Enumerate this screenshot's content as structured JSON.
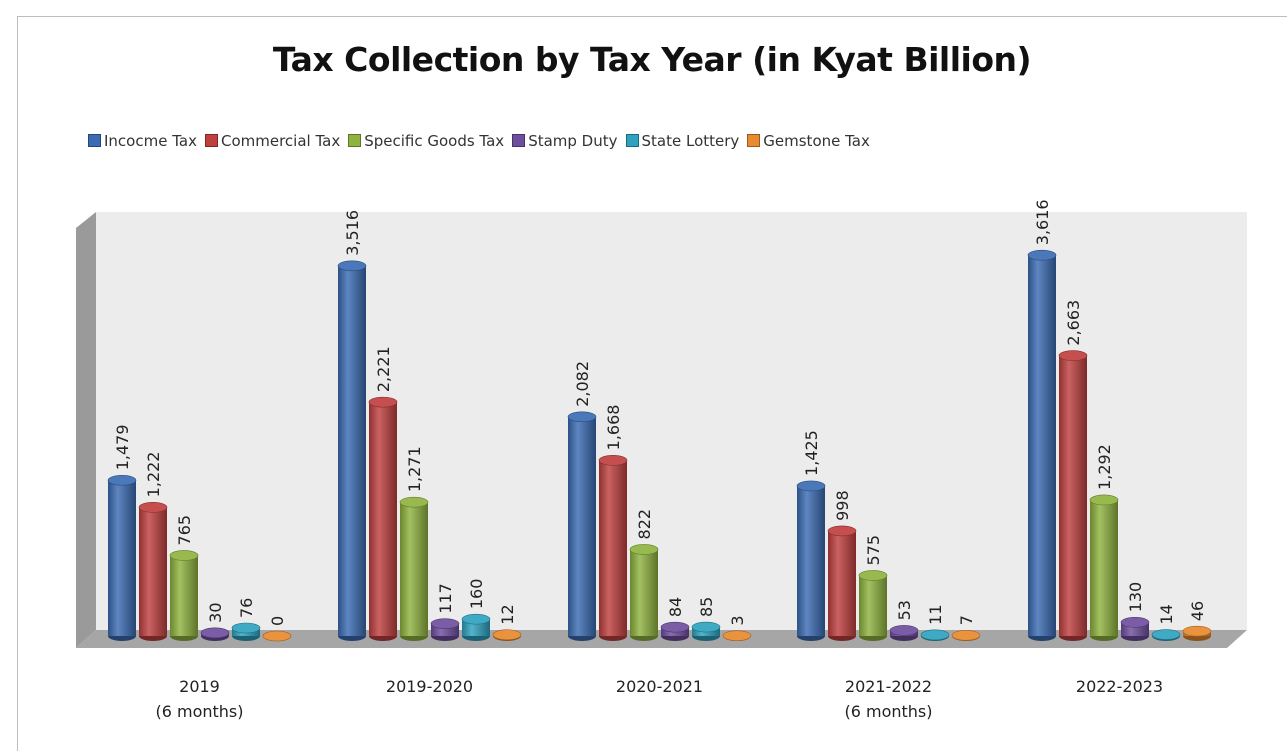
{
  "chart_data": {
    "type": "bar",
    "title": "Tax Collection by Tax Year (in Kyat Billion)",
    "xlabel": "",
    "ylabel": "",
    "ylim": [
      0,
      4000
    ],
    "grid": false,
    "legend_position": "top",
    "categories": [
      [
        "2019",
        "(6 months)"
      ],
      [
        "2019-2020"
      ],
      [
        "2020-2021"
      ],
      [
        "2021-2022",
        "(6 months)"
      ],
      [
        "2022-2023"
      ]
    ],
    "series": [
      {
        "name": "Incocme Tax",
        "color": "#3b6cb3",
        "values": [
          1479,
          3516,
          2082,
          1425,
          3616
        ],
        "labels": [
          "1,479",
          "3,516",
          "2,082",
          "1,425",
          "3,616"
        ]
      },
      {
        "name": "Commercial Tax",
        "color": "#c0403f",
        "values": [
          1222,
          2221,
          1668,
          998,
          2663
        ],
        "labels": [
          "1,222",
          "2,221",
          "1,668",
          "998",
          "2,663"
        ]
      },
      {
        "name": "Specific Goods Tax",
        "color": "#8fb33f",
        "values": [
          765,
          1271,
          822,
          575,
          1292
        ],
        "labels": [
          "765",
          "1,271",
          "822",
          "575",
          "1,292"
        ]
      },
      {
        "name": "Stamp Duty",
        "color": "#6f4e9e",
        "values": [
          30,
          117,
          84,
          53,
          130
        ],
        "labels": [
          "30",
          "117",
          "84",
          "53",
          "130"
        ]
      },
      {
        "name": "State Lottery",
        "color": "#2fa2bf",
        "values": [
          76,
          160,
          85,
          11,
          14
        ],
        "labels": [
          "76",
          "160",
          "85",
          "11",
          "14"
        ]
      },
      {
        "name": "Gemstone Tax",
        "color": "#e88a2e",
        "values": [
          0,
          12,
          3,
          7,
          46
        ],
        "labels": [
          "0",
          "12",
          "3",
          "7",
          "46"
        ]
      }
    ]
  }
}
